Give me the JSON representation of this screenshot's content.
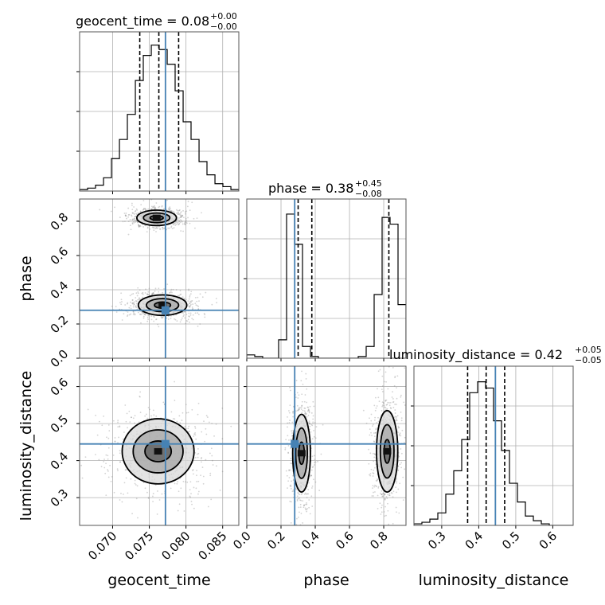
{
  "chart_data": {
    "type": "corner",
    "parameters": [
      "geocent_time",
      "phase",
      "luminosity_distance"
    ],
    "axis_labels": {
      "geocent_time": "geocent_time",
      "phase": "phase",
      "luminosity_distance": "luminosity_distance"
    },
    "ranges": {
      "geocent_time": [
        0.0655,
        0.0872
      ],
      "phase": [
        0.0,
        0.93
      ],
      "luminosity_distance": [
        0.225,
        0.655
      ]
    },
    "ticks": {
      "geocent_time": {
        "values": [
          0.07,
          0.075,
          0.08,
          0.085
        ],
        "labels": [
          "0.070",
          "0.075",
          "0.080",
          "0.085"
        ]
      },
      "phase": {
        "values": [
          0.0,
          0.2,
          0.4,
          0.6,
          0.8
        ],
        "labels": [
          "0.0",
          "0.2",
          "0.4",
          "0.6",
          "0.8"
        ]
      },
      "luminosity_distance": {
        "values": [
          0.3,
          0.4,
          0.5,
          0.6
        ],
        "labels": [
          "0.3",
          "0.4",
          "0.5",
          "0.6"
        ]
      }
    },
    "truths": {
      "geocent_time": 0.0772,
      "phase": 0.28,
      "luminosity_distance": 0.445
    },
    "titles": [
      {
        "param": "geocent_time",
        "text": "geocent_time = 0.08",
        "plus": "+0.00",
        "minus": "−0.00"
      },
      {
        "param": "phase",
        "text": "phase = 0.38",
        "plus": "+0.45",
        "minus": "−0.08"
      },
      {
        "param": "luminosity_distance",
        "text": "luminosity_distance = 0.42",
        "plus": "+0.05",
        "minus": "−0.05"
      }
    ],
    "quantiles": {
      "geocent_time": [
        0.0737,
        0.0763,
        0.079
      ],
      "phase": [
        0.3,
        0.38,
        0.83
      ],
      "luminosity_distance": [
        0.37,
        0.42,
        0.47
      ]
    },
    "histograms": {
      "geocent_time": {
        "edges": [
          0.0655,
          0.06659,
          0.06767,
          0.06876,
          0.06984,
          0.07093,
          0.07201,
          0.0731,
          0.07418,
          0.07527,
          0.07635,
          0.07744,
          0.07852,
          0.07961,
          0.08069,
          0.08178,
          0.08286,
          0.08395,
          0.08503,
          0.08612,
          0.0872
        ],
        "counts": [
          0.01,
          0.02,
          0.04,
          0.09,
          0.22,
          0.35,
          0.52,
          0.75,
          0.92,
          0.99,
          0.96,
          0.86,
          0.68,
          0.47,
          0.35,
          0.2,
          0.11,
          0.05,
          0.03,
          0.01
        ],
        "ylim": [
          0,
          1.08
        ]
      },
      "phase": {
        "edges": [
          0.0,
          0.0465,
          0.093,
          0.1395,
          0.186,
          0.2325,
          0.279,
          0.3255,
          0.372,
          0.4185,
          0.465,
          0.5115,
          0.558,
          0.6045,
          0.651,
          0.6975,
          0.744,
          0.7905,
          0.837,
          0.8835,
          0.93
        ],
        "counts": [
          0.02,
          0.01,
          0.0,
          0.0,
          0.11,
          0.86,
          0.68,
          0.07,
          0.01,
          0.0,
          0.0,
          0.0,
          0.0,
          0.0,
          0.01,
          0.07,
          0.38,
          0.84,
          0.8,
          0.32
        ],
        "ylim": [
          0,
          0.95
        ]
      },
      "luminosity_distance": {
        "edges": [
          0.225,
          0.2465,
          0.268,
          0.2895,
          0.311,
          0.3325,
          0.354,
          0.3755,
          0.397,
          0.4185,
          0.44,
          0.4615,
          0.483,
          0.5045,
          0.526,
          0.5475,
          0.569,
          0.5905,
          0.612,
          0.6335,
          0.655
        ],
        "counts": [
          0.01,
          0.02,
          0.04,
          0.08,
          0.2,
          0.35,
          0.55,
          0.85,
          0.92,
          0.88,
          0.67,
          0.48,
          0.27,
          0.15,
          0.06,
          0.03,
          0.01,
          0.0,
          0.0,
          0.0
        ],
        "ylim": [
          0,
          1.02
        ]
      }
    },
    "contours": [
      {
        "x": "geocent_time",
        "y": "phase",
        "blobs": [
          {
            "cx": 0.076,
            "cy": 0.82,
            "rx": [
              0.0027,
              0.0018,
              0.0009
            ],
            "ry": [
              0.045,
              0.028,
              0.013
            ]
          },
          {
            "cx": 0.0768,
            "cy": 0.31,
            "rx": [
              0.0033,
              0.0022,
              0.0011
            ],
            "ry": [
              0.06,
              0.038,
              0.018
            ]
          }
        ]
      },
      {
        "x": "geocent_time",
        "y": "luminosity_distance",
        "blobs": [
          {
            "cx": 0.0762,
            "cy": 0.425,
            "rx": [
              0.0049,
              0.0034,
              0.0018
            ],
            "ry": [
              0.088,
              0.058,
              0.028
            ]
          }
        ]
      },
      {
        "x": "phase",
        "y": "luminosity_distance",
        "blobs": [
          {
            "cx": 0.32,
            "cy": 0.42,
            "rx": [
              0.052,
              0.034,
              0.016
            ],
            "ry": [
              0.105,
              0.068,
              0.03
            ]
          },
          {
            "cx": 0.82,
            "cy": 0.425,
            "rx": [
              0.062,
              0.04,
              0.018
            ],
            "ry": [
              0.11,
              0.072,
              0.032
            ]
          }
        ]
      }
    ],
    "grid": true
  }
}
